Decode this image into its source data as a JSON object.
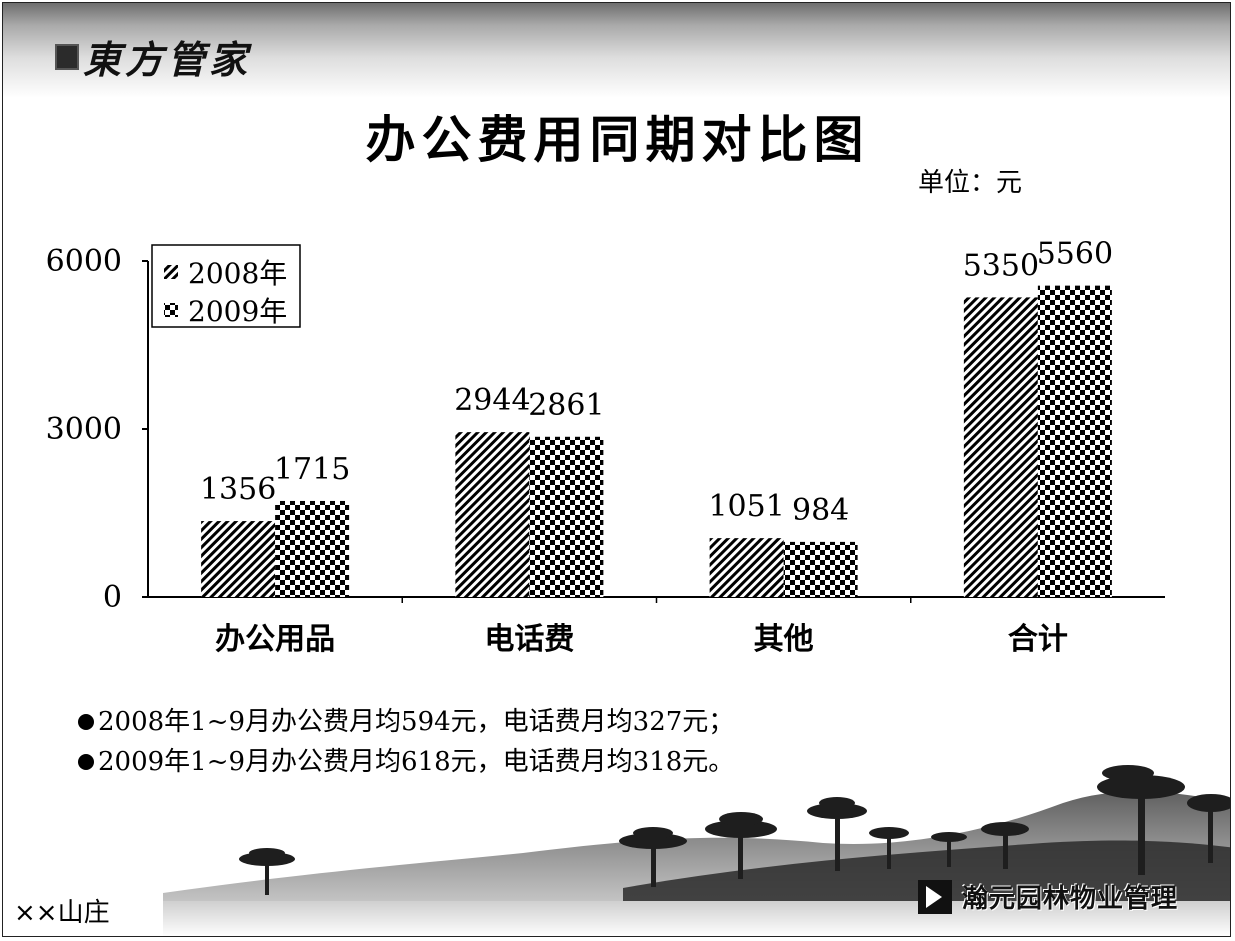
{
  "logo": {
    "seal_text": "",
    "name": "東方管家"
  },
  "unit_label": "单位：元",
  "chart_data": {
    "type": "bar",
    "title": "办公费用同期对比图",
    "categories": [
      "办公用品",
      "电话费",
      "其他",
      "合计"
    ],
    "series": [
      {
        "name": "2008年",
        "values": [
          1356,
          2944,
          1051,
          5350
        ],
        "pattern": "diagonal-hatch"
      },
      {
        "name": "2009年",
        "values": [
          1715,
          2861,
          984,
          5560
        ],
        "pattern": "checkerboard"
      }
    ],
    "yticks": [
      "0",
      "3000",
      "6000"
    ],
    "ylim": [
      0,
      6000
    ],
    "xlabel": "",
    "ylabel": "",
    "legend_position": "top-left",
    "grid": false
  },
  "notes": [
    "2008年1~9月办公费月均594元，电话费月均327元；",
    "2009年1~9月办公费月均618元，电话费月均318元。"
  ],
  "footer": {
    "left_text": "××山庄",
    "brand": "瀚元园林物业管理"
  }
}
